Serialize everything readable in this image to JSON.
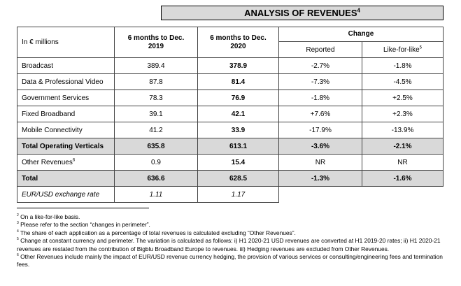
{
  "title": {
    "text": "ANALYSIS OF REVENUES",
    "sup": "4"
  },
  "table": {
    "header": {
      "unit": "In € millions",
      "col1": "6 months to Dec. 2019",
      "col2": "6 months to Dec. 2020",
      "change": "Change",
      "reported": "Reported",
      "lfl": "Like-for-like",
      "lfl_sup": "5"
    },
    "rows": [
      {
        "label": "Broadcast",
        "values": [
          "389.4",
          "378.9",
          "-2.7%",
          "-1.8%"
        ]
      },
      {
        "label": "Data & Professional Video",
        "values": [
          "87.8",
          "81.4",
          "-7.3%",
          "-4.5%"
        ]
      },
      {
        "label": "Government Services",
        "values": [
          "78.3",
          "76.9",
          "-1.8%",
          "+2.5%"
        ]
      },
      {
        "label": "Fixed Broadband",
        "values": [
          "39.1",
          "42.1",
          "+7.6%",
          "+2.3%"
        ]
      },
      {
        "label": "Mobile Connectivity",
        "values": [
          "41.2",
          "33.9",
          "-17.9%",
          "-13.9%"
        ]
      },
      {
        "label": "Total Operating Verticals",
        "values": [
          "635.8",
          "613.1",
          "-3.6%",
          "-2.1%"
        ]
      },
      {
        "label": "Other Revenues",
        "sup": "6",
        "values": [
          "0.9",
          "15.4",
          "NR",
          "NR"
        ]
      },
      {
        "label": "Total",
        "values": [
          "636.6",
          "628.5",
          "-1.3%",
          "-1.6%"
        ]
      },
      {
        "label": "EUR/USD exchange rate",
        "values": [
          "1.11",
          "1.17"
        ]
      }
    ]
  },
  "footnotes": [
    {
      "num": "2",
      "text": "On a like-for-like basis."
    },
    {
      "num": "3",
      "text": "Please refer to the section “changes in perimeter”."
    },
    {
      "num": "4",
      "text": "The share of each application as a percentage of total revenues is calculated excluding “Other Revenues”."
    },
    {
      "num": "5",
      "text": "Change at constant currency and perimeter. The variation is calculated as follows: i) H1 2020-21 USD revenues are converted at H1 2019-20 rates; ii) H1 2020-21 revenues are restated from the contribution of Bigblu Broadband Europe to revenues. iii) Hedging revenues are excluded from Other Revenues."
    },
    {
      "num": "6",
      "text": "Other Revenues include mainly the impact of EUR/USD revenue currency hedging, the provision of various services or consulting/engineering fees and termination fees."
    }
  ]
}
